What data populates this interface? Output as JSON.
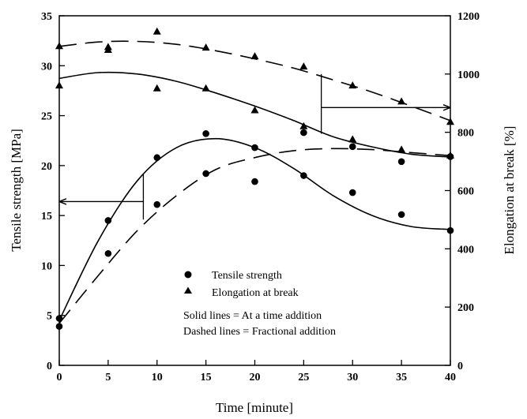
{
  "chart_data": {
    "type": "scatter",
    "xlabel": "Time [minute]",
    "ylabel_left": "Tensile strength [MPa]",
    "ylabel_right": "Elongation at break [%]",
    "xlim": [
      0,
      40
    ],
    "ylim_left": [
      0,
      35
    ],
    "ylim_right": [
      0,
      1200
    ],
    "x_ticks": [
      "0",
      "5",
      "10",
      "15",
      "20",
      "25",
      "30",
      "35",
      "40"
    ],
    "y_left_ticks": [
      "0",
      "5",
      "10",
      "15",
      "20",
      "25",
      "30",
      "35"
    ],
    "y_right_ticks": [
      "0",
      "200",
      "400",
      "600",
      "800",
      "1000",
      "1200"
    ],
    "grid": false,
    "legend": [
      {
        "marker": "circle",
        "label": "Tensile strength"
      },
      {
        "marker": "triangle",
        "label": "Elongation at break"
      }
    ],
    "notes": [
      "Solid lines = At a time addition",
      "Dashed lines = Fractional addition"
    ],
    "series": [
      {
        "marker": "circle",
        "line": "solid",
        "axis": "left",
        "x": [
          0,
          5,
          10,
          15,
          20,
          25,
          30,
          35,
          40
        ],
        "y": [
          4.7,
          14.5,
          20.8,
          23.2,
          21.8,
          23.3,
          21.9,
          20.4,
          20.9
        ]
      },
      {
        "marker": "circle",
        "line": "dashed",
        "axis": "left",
        "x": [
          0,
          5,
          10,
          15,
          20,
          25,
          30,
          35,
          40
        ],
        "y": [
          3.9,
          11.2,
          16.1,
          19.2,
          18.4,
          19.0,
          17.3,
          15.1,
          13.5
        ]
      },
      {
        "marker": "triangle",
        "line": "dashed",
        "axis": "right",
        "x": [
          0,
          5,
          10,
          15,
          20,
          25,
          30,
          35,
          40
        ],
        "y": [
          1095,
          1082,
          1145,
          1090,
          1060,
          1025,
          960,
          905,
          835
        ]
      },
      {
        "marker": "triangle",
        "line": "solid",
        "axis": "right",
        "x": [
          0,
          5,
          10,
          15,
          20,
          25,
          30,
          35,
          40
        ],
        "y": [
          960,
          1092,
          950,
          950,
          875,
          820,
          775,
          740,
          720
        ]
      }
    ],
    "curves": [
      {
        "line": "solid",
        "axis": "left",
        "x": [
          0,
          4,
          8,
          12,
          16,
          20,
          24,
          28,
          32,
          36,
          40
        ],
        "y": [
          4.5,
          12.5,
          18.5,
          21.8,
          22.7,
          21.8,
          19.7,
          17.0,
          15.0,
          13.9,
          13.6
        ]
      },
      {
        "line": "dashed",
        "axis": "left",
        "x": [
          0,
          4,
          8,
          12,
          16,
          20,
          24,
          28,
          32,
          36,
          40
        ],
        "y": [
          4.2,
          9.0,
          13.5,
          17.0,
          19.6,
          20.8,
          21.5,
          21.7,
          21.6,
          21.3,
          21.0
        ]
      },
      {
        "line": "dashed",
        "axis": "right",
        "x": [
          0,
          4,
          8,
          12,
          16,
          20,
          24,
          28,
          32,
          36,
          40
        ],
        "y": [
          1095,
          1110,
          1112,
          1102,
          1080,
          1052,
          1020,
          980,
          938,
          890,
          840
        ]
      },
      {
        "line": "solid",
        "axis": "right",
        "x": [
          0,
          4,
          8,
          12,
          16,
          20,
          24,
          28,
          32,
          36,
          40
        ],
        "y": [
          985,
          1005,
          1000,
          975,
          935,
          890,
          840,
          785,
          750,
          725,
          715
        ]
      }
    ],
    "arrows": [
      {
        "axis": "left",
        "from_x": 8.6,
        "to_x": 0,
        "y": 16.4,
        "stem": [
          14.6,
          19.2
        ]
      },
      {
        "axis": "right",
        "from_x": 26.8,
        "to_x": 40,
        "y": 885,
        "stem": [
          795,
          1000
        ]
      }
    ]
  }
}
